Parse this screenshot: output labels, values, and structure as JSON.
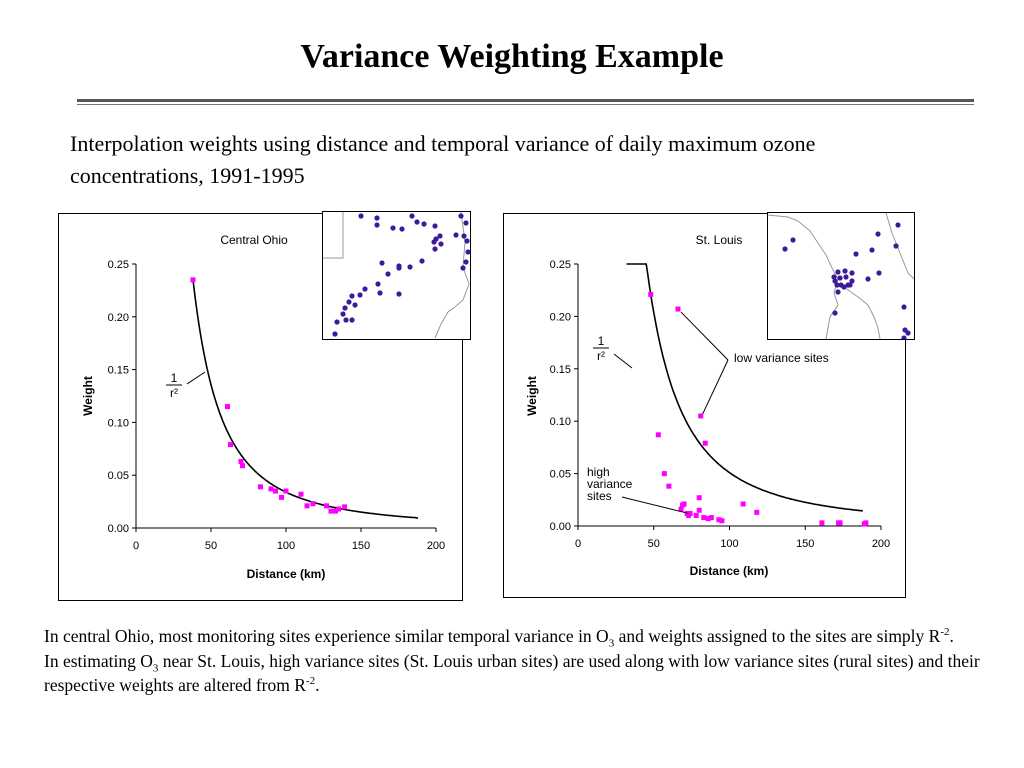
{
  "slide": {
    "title": "Variance Weighting Example",
    "subtitle": "Interpolation weights using distance and temporal variance of daily maximum ozone concentrations, 1991-1995",
    "footer": {
      "line1_a": "In central Ohio, most monitoring sites experience similar temporal variance in O",
      "line1_sub": "3",
      "line1_b": " and weights assigned to the sites are simply R",
      "line1_sup": "-2",
      "line1_c": ".",
      "line2_a": "In estimating O",
      "line2_sub": "3",
      "line2_b": " near St. Louis, high variance sites (St. Louis urban sites) are used along with low variance sites (rural sites) and their respective weights are altered from R",
      "line2_sup": "-2",
      "line2_c": "."
    }
  },
  "colors": {
    "points": "#ff00ff",
    "curve": "#000000",
    "map_dots": "#3d1a9a",
    "map_lines": "#999999",
    "rule": "#555555"
  },
  "chart_data": [
    {
      "type": "scatter",
      "title": "Central Ohio",
      "xlabel": "Distance (km)",
      "ylabel": "Weight",
      "xlim": [
        0,
        200
      ],
      "ylim": [
        0,
        0.25
      ],
      "xticks": [
        "0",
        "50",
        "100",
        "150",
        "200"
      ],
      "yticks": [
        "0.00",
        "0.05",
        "0.10",
        "0.15",
        "0.20",
        "0.25"
      ],
      "grid": false,
      "curve_label": {
        "num": "1",
        "den": "r²"
      },
      "points": [
        [
          38,
          0.235
        ],
        [
          61,
          0.115
        ],
        [
          63,
          0.079
        ],
        [
          70,
          0.063
        ],
        [
          71,
          0.059
        ],
        [
          83,
          0.039
        ],
        [
          90,
          0.037
        ],
        [
          93,
          0.035
        ],
        [
          97,
          0.029
        ],
        [
          100,
          0.035
        ],
        [
          110,
          0.032
        ],
        [
          114,
          0.021
        ],
        [
          118,
          0.023
        ],
        [
          127,
          0.021
        ],
        [
          130,
          0.016
        ],
        [
          133,
          0.016
        ],
        [
          135,
          0.018
        ],
        [
          139,
          0.02
        ]
      ],
      "curve": {
        "formula": "k/r^2",
        "from": 38,
        "to": 188
      }
    },
    {
      "type": "scatter",
      "title": "St. Louis",
      "xlabel": "Distance (km)",
      "ylabel": "Weight",
      "xlim": [
        0,
        200
      ],
      "ylim": [
        0,
        0.25
      ],
      "xticks": [
        "0",
        "50",
        "100",
        "150",
        "200"
      ],
      "yticks": [
        "0.00",
        "0.05",
        "0.10",
        "0.15",
        "0.20",
        "0.25"
      ],
      "grid": false,
      "curve_label": {
        "num": "1",
        "den": "r²"
      },
      "annotations": {
        "low_variance": "low  variance sites",
        "high_variance": [
          "high",
          "variance",
          "sites"
        ]
      },
      "points": [
        [
          48,
          0.221
        ],
        [
          53,
          0.087
        ],
        [
          57,
          0.05
        ],
        [
          60,
          0.038
        ],
        [
          66,
          0.207
        ],
        [
          68,
          0.016
        ],
        [
          69,
          0.02
        ],
        [
          70,
          0.021
        ],
        [
          72,
          0.012
        ],
        [
          73,
          0.01
        ],
        [
          74,
          0.012
        ],
        [
          78,
          0.01
        ],
        [
          80,
          0.015
        ],
        [
          80,
          0.027
        ],
        [
          81,
          0.105
        ],
        [
          83,
          0.008
        ],
        [
          84,
          0.079
        ],
        [
          86,
          0.007
        ],
        [
          88,
          0.008
        ],
        [
          93,
          0.006
        ],
        [
          95,
          0.005
        ],
        [
          109,
          0.021
        ],
        [
          118,
          0.013
        ],
        [
          161,
          0.003
        ],
        [
          172,
          0.003
        ],
        [
          173,
          0.003
        ],
        [
          189,
          0.002
        ],
        [
          190,
          0.003
        ]
      ],
      "curve": {
        "formula": "k/r^2",
        "from": 32,
        "to": 188
      }
    }
  ],
  "maps": {
    "ohio": {
      "sites": [
        [
          38,
          4
        ],
        [
          54,
          6
        ],
        [
          54,
          13
        ],
        [
          70,
          16
        ],
        [
          89,
          4
        ],
        [
          94,
          10
        ],
        [
          101,
          12
        ],
        [
          112,
          14
        ],
        [
          79,
          17
        ],
        [
          138,
          4
        ],
        [
          143,
          11
        ],
        [
          141,
          24
        ],
        [
          133,
          23
        ],
        [
          117,
          24
        ],
        [
          113,
          27
        ],
        [
          111,
          30
        ],
        [
          118,
          32
        ],
        [
          112,
          37
        ],
        [
          144,
          29
        ],
        [
          145,
          40
        ],
        [
          143,
          50
        ],
        [
          140,
          56
        ],
        [
          99,
          49
        ],
        [
          59,
          51
        ],
        [
          76,
          54
        ],
        [
          65,
          62
        ],
        [
          87,
          55
        ],
        [
          76,
          56
        ],
        [
          55,
          72
        ],
        [
          42,
          77
        ],
        [
          57,
          81
        ],
        [
          76,
          82
        ],
        [
          37,
          83
        ],
        [
          29,
          84
        ],
        [
          26,
          90
        ],
        [
          32,
          93
        ],
        [
          22,
          96
        ],
        [
          20,
          102
        ],
        [
          23,
          108
        ],
        [
          29,
          108
        ],
        [
          14,
          110
        ],
        [
          12,
          122
        ]
      ]
    },
    "stlouis": {
      "sites": [
        [
          130,
          12
        ],
        [
          110,
          21
        ],
        [
          128,
          33
        ],
        [
          104,
          37
        ],
        [
          88,
          41
        ],
        [
          70,
          59
        ],
        [
          77,
          58
        ],
        [
          84,
          60
        ],
        [
          67,
          68
        ],
        [
          72,
          65
        ],
        [
          78,
          64
        ],
        [
          69,
          72
        ],
        [
          73,
          72
        ],
        [
          76,
          74
        ],
        [
          80,
          72
        ],
        [
          66,
          64
        ],
        [
          84,
          68
        ],
        [
          111,
          60
        ],
        [
          100,
          66
        ],
        [
          82,
          72
        ],
        [
          70,
          79
        ],
        [
          17,
          36
        ],
        [
          25,
          27
        ],
        [
          67,
          100
        ],
        [
          136,
          94
        ],
        [
          137,
          117
        ],
        [
          140,
          120
        ],
        [
          136,
          125
        ]
      ]
    }
  }
}
